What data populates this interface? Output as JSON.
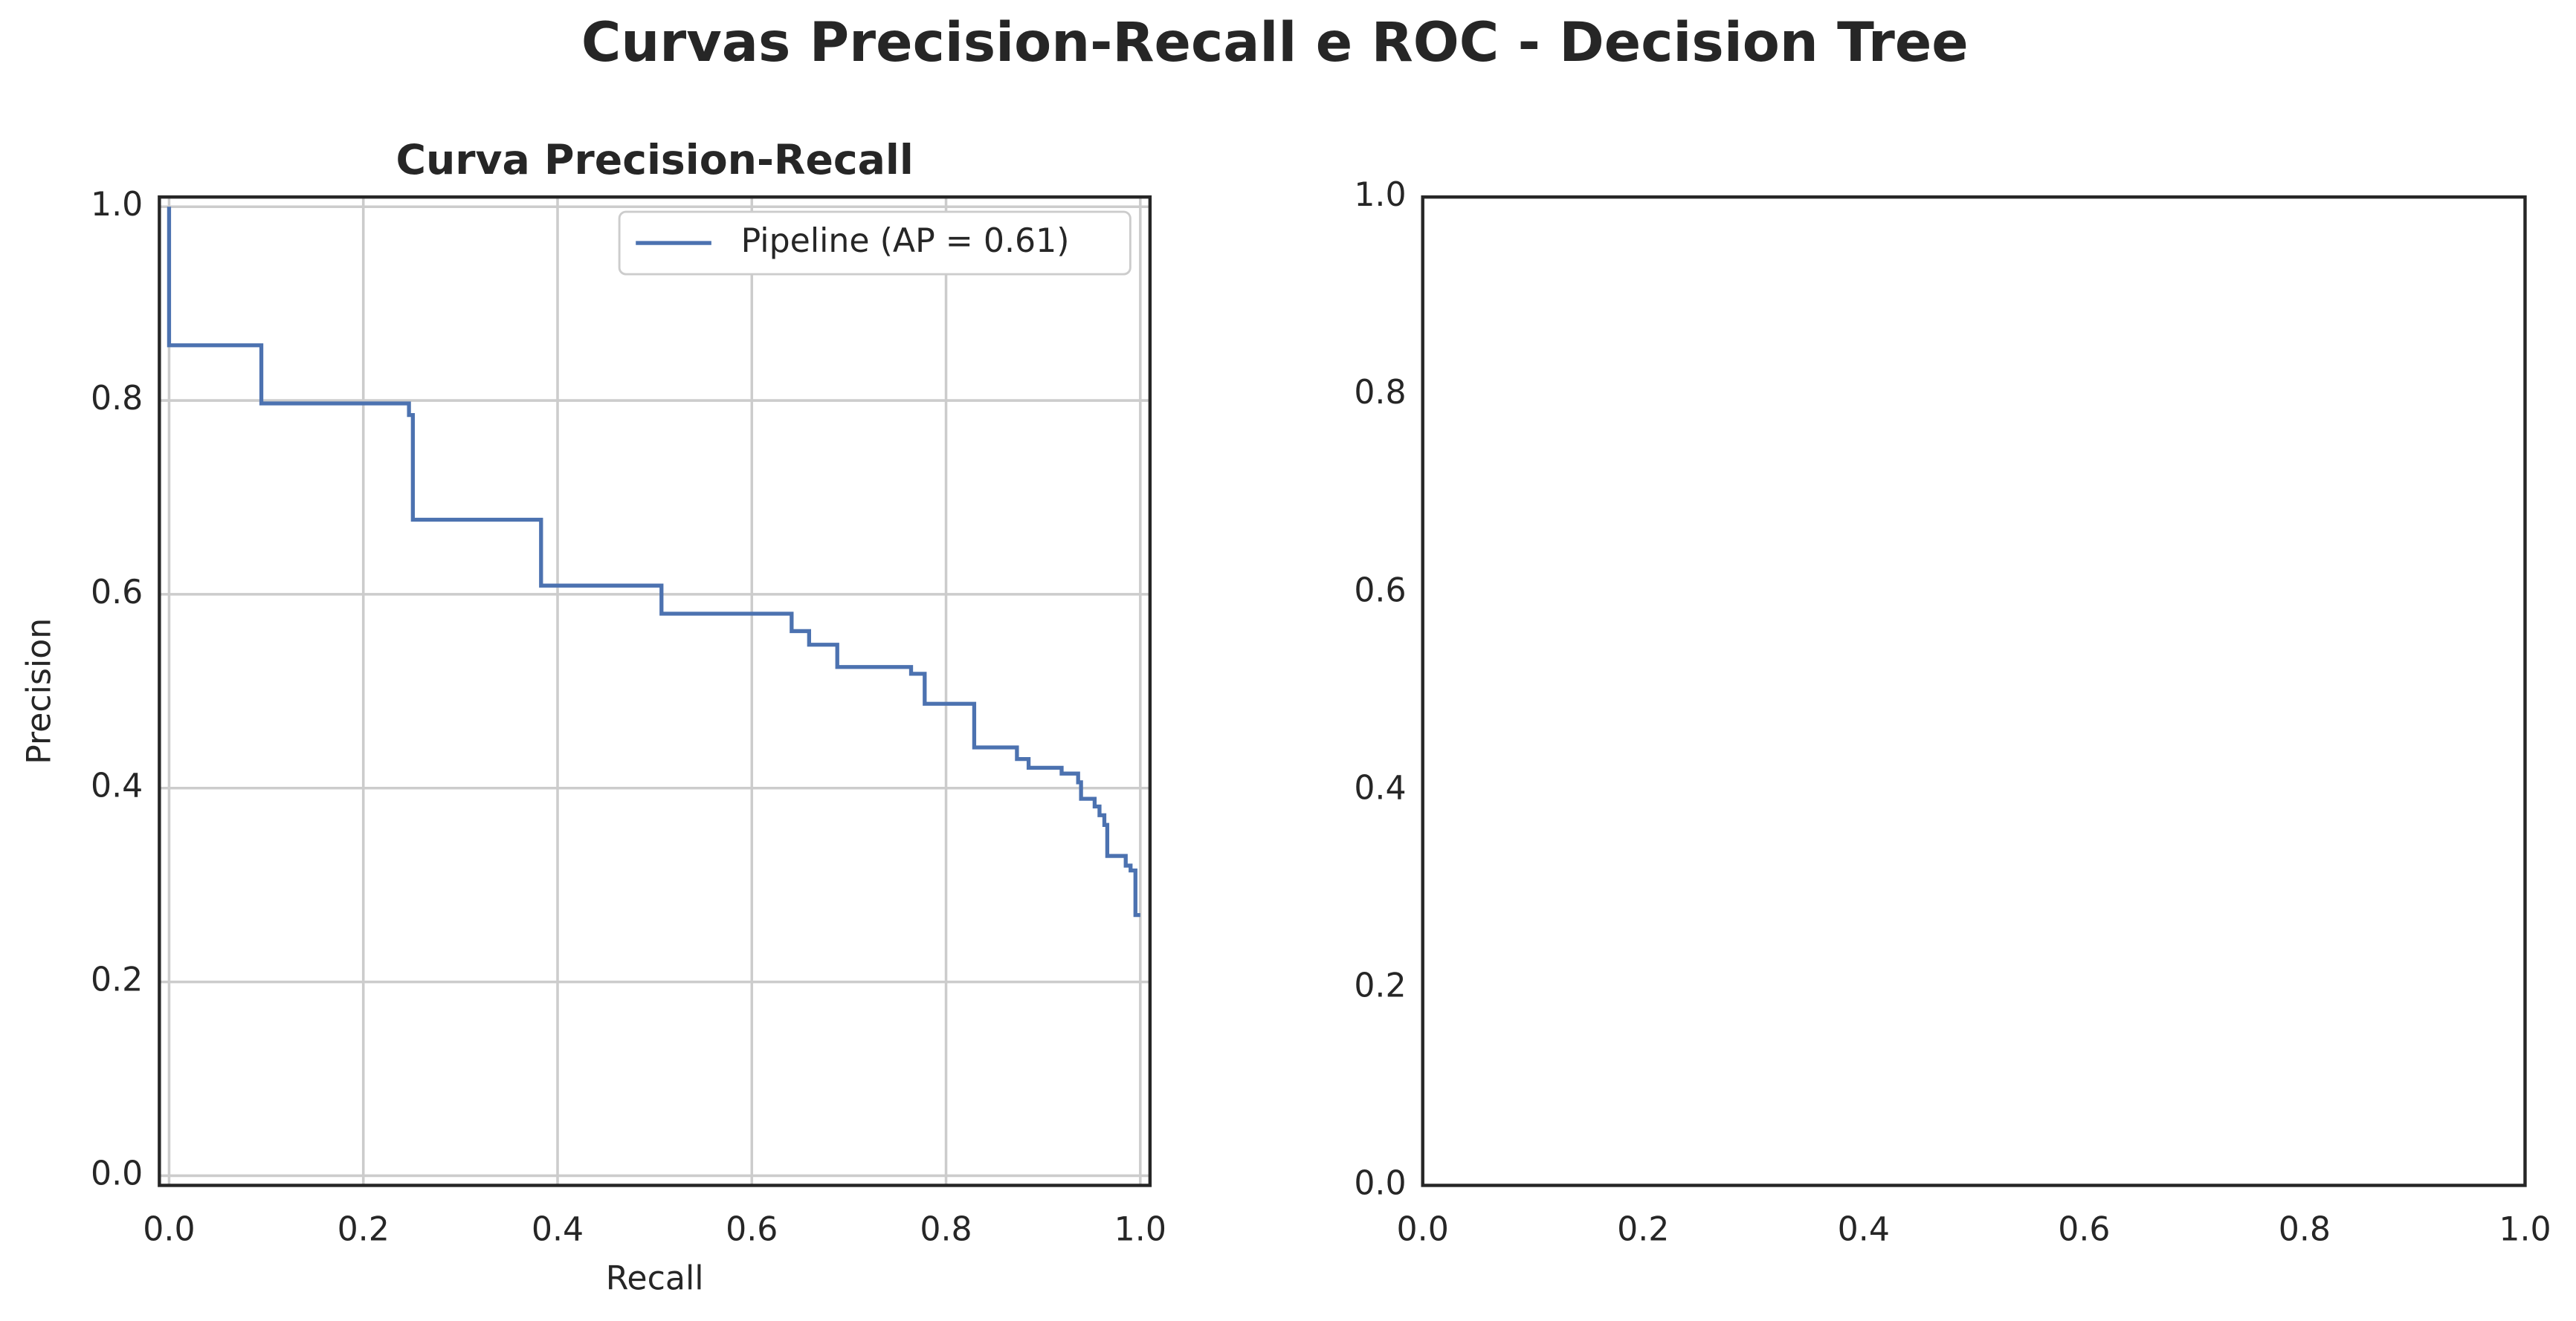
{
  "title": "Curvas Precision-Recall e ROC - Decision Tree",
  "chart_data": [
    {
      "type": "line",
      "title": "Curva Precision-Recall",
      "x_label": "Recall",
      "y_label": "Precision",
      "drawstyle": "steps-post",
      "grid": true,
      "legend": "upper right",
      "xlim": [
        -0.01,
        1.01
      ],
      "ylim": [
        -0.01,
        1.01
      ],
      "xticks": [
        {
          "value": 0,
          "label": "0.0"
        },
        0.2,
        0.4,
        0.6,
        0.8,
        {
          "value": 1,
          "label": "1.0"
        }
      ],
      "yticks": [
        {
          "value": 0,
          "label": "0.0"
        },
        0.2,
        0.4,
        0.6,
        0.8,
        {
          "value": 1,
          "label": "1.0"
        }
      ],
      "x": [
        0.0,
        0.0,
        0.095,
        0.247,
        0.251,
        0.383,
        0.507,
        0.641,
        0.659,
        0.688,
        0.764,
        0.778,
        0.829,
        0.873,
        0.885,
        0.919,
        0.936,
        0.939,
        0.953,
        0.958,
        0.963,
        0.966,
        0.985,
        0.99,
        0.995,
        1.0
      ],
      "series": [
        {
          "name": "Pipeline (AP = 0.61)",
          "color": "#4c72b0",
          "values": [
            1.0,
            0.857,
            0.797,
            0.785,
            0.677,
            0.609,
            0.58,
            0.562,
            0.548,
            0.525,
            0.518,
            0.487,
            0.442,
            0.43,
            0.421,
            0.415,
            0.406,
            0.389,
            0.381,
            0.372,
            0.362,
            0.33,
            0.32,
            0.315,
            0.269,
            0.269
          ]
        }
      ]
    },
    {
      "type": "line",
      "grid": false,
      "xlim": [
        0,
        1
      ],
      "ylim": [
        0,
        1
      ],
      "xticks": [
        {
          "value": 0,
          "label": "0.0"
        },
        0.2,
        0.4,
        0.6,
        0.8,
        {
          "value": 1,
          "label": "1.0"
        }
      ],
      "yticks": [
        {
          "value": 0,
          "label": "0.0"
        },
        0.2,
        0.4,
        0.6,
        0.8,
        {
          "value": 1,
          "label": "1.0"
        }
      ],
      "x": [],
      "series": []
    }
  ]
}
